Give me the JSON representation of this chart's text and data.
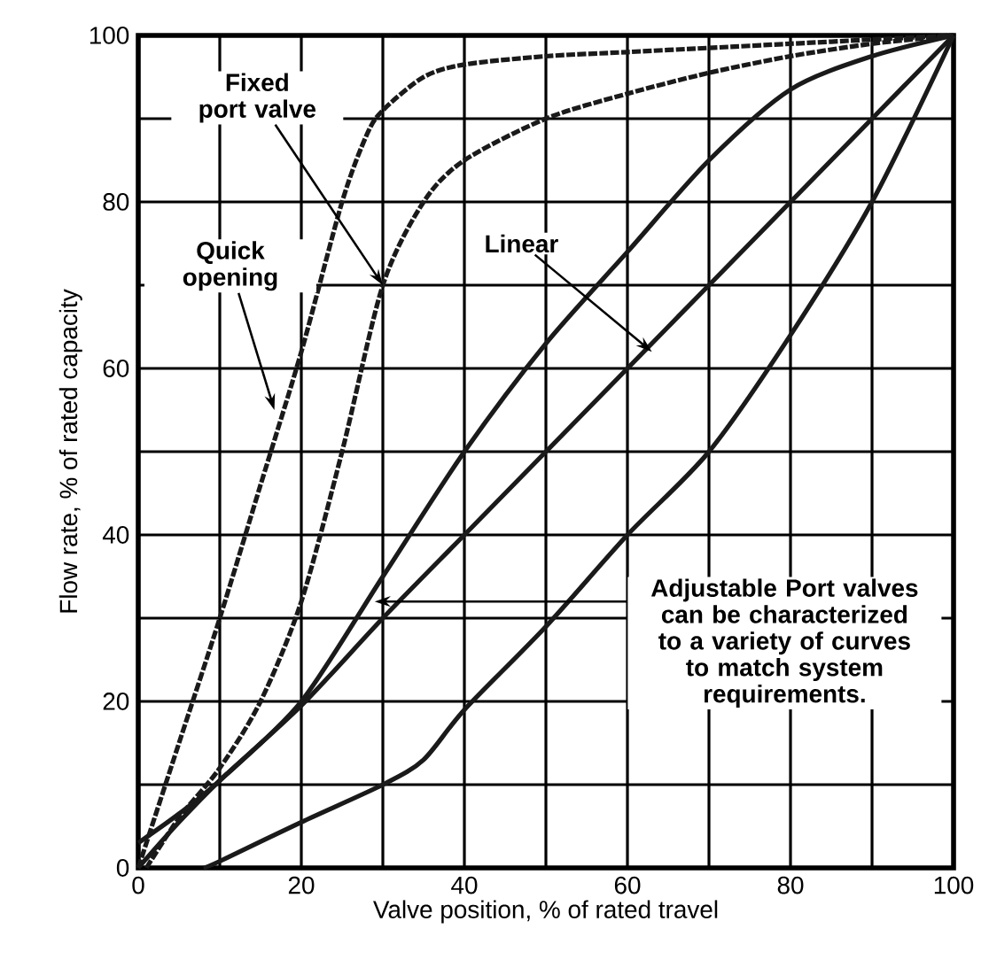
{
  "chart_data": {
    "type": "line",
    "xlabel": "Valve position, % of rated travel",
    "ylabel": "Flow rate, % of rated capacity",
    "xlim": [
      0,
      100
    ],
    "ylim": [
      0,
      100
    ],
    "xticks": [
      0,
      {
        "value": 10,
        "label": null
      },
      20,
      {
        "value": 30,
        "label": null
      },
      40,
      {
        "value": 50,
        "label": null
      },
      60,
      {
        "value": 70,
        "label": null
      },
      80,
      {
        "value": 90,
        "label": null
      },
      100
    ],
    "yticks": [
      0,
      {
        "value": 10,
        "label": null
      },
      20,
      {
        "value": 30,
        "label": null
      },
      40,
      {
        "value": 50,
        "label": null
      },
      60,
      {
        "value": 70,
        "label": null
      },
      80,
      {
        "value": 90,
        "label": null
      },
      100
    ],
    "grid": true,
    "series": [
      {
        "color": "#1a1a1a",
        "line_style": "dashed",
        "x": [
          0,
          5,
          10,
          15,
          20,
          25,
          28,
          30,
          35,
          40,
          50,
          60,
          70,
          80,
          90,
          100
        ],
        "values": [
          0,
          15,
          30,
          46,
          62,
          80,
          88,
          91,
          95,
          96.5,
          97.5,
          98,
          98.5,
          99,
          99.5,
          100
        ]
      },
      {
        "color": "#1a1a1a",
        "line_style": "dashed",
        "x": [
          1,
          5,
          10,
          15,
          20,
          25,
          30,
          35,
          40,
          50,
          60,
          70,
          80,
          90,
          100
        ],
        "values": [
          0,
          6,
          12,
          20,
          32,
          50,
          70,
          80,
          85,
          90,
          93,
          95.5,
          97.5,
          99,
          100
        ]
      },
      {
        "color": "#1a1a1a",
        "line_style": "solid",
        "x": [
          0,
          5,
          10,
          20,
          30,
          40,
          50,
          60,
          70,
          80,
          90,
          100
        ],
        "values": [
          3,
          6.5,
          10.5,
          20,
          35,
          50,
          63,
          74,
          85,
          93.5,
          97.5,
          100
        ]
      },
      {
        "color": "#1a1a1a",
        "line_style": "solid",
        "x": [
          0,
          5,
          10,
          20,
          30,
          40,
          50,
          60,
          70,
          80,
          90,
          100
        ],
        "values": [
          0,
          5.5,
          10.5,
          19.5,
          30,
          40,
          50,
          60,
          70,
          80,
          90,
          100
        ]
      },
      {
        "color": "#1a1a1a",
        "line_style": "solid",
        "x": [
          8,
          10,
          20,
          30,
          35,
          40,
          50,
          60,
          70,
          80,
          90,
          100
        ],
        "values": [
          0,
          0.8,
          5.5,
          10,
          13,
          19,
          29,
          40,
          50,
          64,
          80,
          100
        ]
      }
    ],
    "annotations": [
      {
        "text": "Fixed port valve",
        "x": 30,
        "y": 70
      },
      {
        "text": "Quick opening",
        "x": 16.7,
        "y": 55
      },
      {
        "text": "Linear",
        "x": 63,
        "y": 62
      },
      {
        "text": "Adjustable Port valves can be characterized to a variety of curves to match system requirements.",
        "x": 29,
        "y": 32
      }
    ]
  }
}
